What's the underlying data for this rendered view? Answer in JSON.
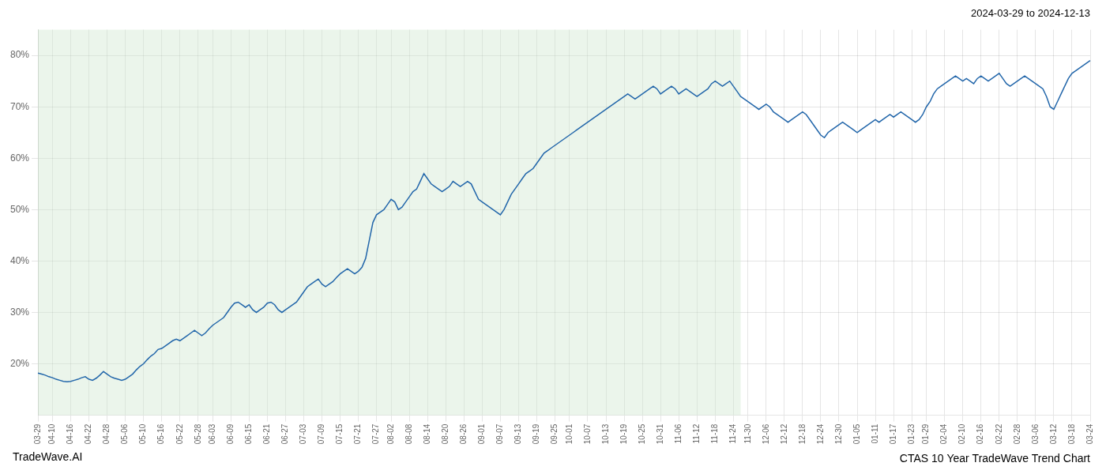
{
  "chart_data": {
    "type": "line",
    "title": "CTAS 10 Year TradeWave Trend Chart",
    "subtitle": "2024-03-29 to 2024-12-13",
    "annotations": [
      "TradeWave.AI"
    ],
    "color": "#2266aa",
    "grid": true,
    "ylim": [
      10,
      85
    ],
    "yticks": [
      {
        "value": 20,
        "label": "20%"
      },
      {
        "value": 30,
        "label": "30%"
      },
      {
        "value": 40,
        "label": "40%"
      },
      {
        "value": 50,
        "label": "50%"
      },
      {
        "value": 60,
        "label": "60%"
      },
      {
        "value": 70,
        "label": "70%"
      },
      {
        "value": 80,
        "label": "80%"
      }
    ],
    "shade": {
      "start": 0,
      "end": 193,
      "color": "#cce5cc"
    },
    "categories": [
      "03-29",
      null,
      null,
      null,
      "04-10",
      null,
      null,
      null,
      null,
      "04-16",
      null,
      null,
      null,
      null,
      "04-22",
      null,
      null,
      null,
      null,
      "04-28",
      null,
      null,
      null,
      null,
      "05-06",
      null,
      null,
      null,
      null,
      "05-10",
      null,
      null,
      null,
      null,
      "05-16",
      null,
      null,
      null,
      null,
      "05-22",
      null,
      null,
      null,
      null,
      "05-28",
      null,
      null,
      null,
      "06-03",
      null,
      null,
      null,
      null,
      "06-09",
      null,
      null,
      null,
      null,
      "06-15",
      null,
      null,
      null,
      null,
      "06-21",
      null,
      null,
      null,
      null,
      "06-27",
      null,
      null,
      null,
      null,
      "07-03",
      null,
      null,
      null,
      null,
      "07-09",
      null,
      null,
      null,
      null,
      "07-15",
      null,
      null,
      null,
      null,
      "07-21",
      null,
      null,
      null,
      null,
      "07-27",
      null,
      null,
      null,
      "08-02",
      null,
      null,
      null,
      null,
      "08-08",
      null,
      null,
      null,
      null,
      "08-14",
      null,
      null,
      null,
      null,
      "08-20",
      null,
      null,
      null,
      null,
      "08-26",
      null,
      null,
      null,
      null,
      "09-01",
      null,
      null,
      null,
      null,
      "09-07",
      null,
      null,
      null,
      null,
      "09-13",
      null,
      null,
      null,
      null,
      "09-19",
      null,
      null,
      null,
      null,
      "09-25",
      null,
      null,
      null,
      "10-01",
      null,
      null,
      null,
      null,
      "10-07",
      null,
      null,
      null,
      null,
      "10-13",
      null,
      null,
      null,
      null,
      "10-19",
      null,
      null,
      null,
      null,
      "10-25",
      null,
      null,
      null,
      null,
      "10-31",
      null,
      null,
      null,
      null,
      "11-06",
      null,
      null,
      null,
      null,
      "11-12",
      null,
      null,
      null,
      null,
      "11-18",
      null,
      null,
      null,
      null,
      "11-24",
      null,
      null,
      null,
      "11-30",
      null,
      null,
      null,
      null,
      "12-06",
      null,
      null,
      null,
      null,
      "12-12",
      null,
      null,
      null,
      null,
      "12-18",
      null,
      null,
      null,
      null,
      "12-24",
      null,
      null,
      null,
      null,
      "12-30",
      null,
      null,
      null,
      null,
      "01-05",
      null,
      null,
      null,
      null,
      "01-11",
      null,
      null,
      null,
      null,
      "01-17",
      null,
      null,
      null,
      null,
      "01-23",
      null,
      null,
      null,
      "01-29",
      null,
      null,
      null,
      null,
      "02-04",
      null,
      null,
      null,
      null,
      "02-10",
      null,
      null,
      null,
      null,
      "02-16",
      null,
      null,
      null,
      null,
      "02-22",
      null,
      null,
      null,
      null,
      "02-28",
      null,
      null,
      null,
      null,
      "03-06",
      null,
      null,
      null,
      null,
      "03-12",
      null,
      null,
      null,
      null,
      "03-18",
      null,
      null,
      null,
      null,
      "03-24"
    ],
    "values": [
      18.2,
      18.0,
      17.8,
      17.5,
      17.3,
      17.0,
      16.8,
      16.6,
      16.5,
      16.6,
      16.8,
      17.0,
      17.3,
      17.5,
      17.0,
      16.8,
      17.2,
      17.8,
      18.5,
      18.0,
      17.5,
      17.2,
      17.0,
      16.8,
      17.0,
      17.5,
      18.0,
      18.8,
      19.5,
      20.0,
      20.8,
      21.5,
      22.0,
      22.8,
      23.0,
      23.5,
      24.0,
      24.5,
      24.8,
      24.5,
      25.0,
      25.5,
      26.0,
      26.5,
      26.0,
      25.5,
      26.0,
      26.8,
      27.5,
      28.0,
      28.5,
      29.0,
      30.0,
      31.0,
      31.8,
      32.0,
      31.5,
      31.0,
      31.5,
      30.5,
      30.0,
      30.5,
      31.0,
      31.8,
      32.0,
      31.5,
      30.5,
      30.0,
      30.5,
      31.0,
      31.5,
      32.0,
      33.0,
      34.0,
      35.0,
      35.5,
      36.0,
      36.5,
      35.5,
      35.0,
      35.5,
      36.0,
      36.8,
      37.5,
      38.0,
      38.5,
      38.0,
      37.5,
      38.0,
      38.8,
      40.5,
      44.0,
      47.5,
      49.0,
      49.5,
      50.0,
      51.0,
      52.0,
      51.5,
      50.0,
      50.5,
      51.5,
      52.5,
      53.5,
      54.0,
      55.5,
      57.0,
      56.0,
      55.0,
      54.5,
      54.0,
      53.5,
      54.0,
      54.5,
      55.5,
      55.0,
      54.5,
      55.0,
      55.5,
      55.0,
      53.5,
      52.0,
      51.5,
      51.0,
      50.5,
      50.0,
      49.5,
      49.0,
      50.0,
      51.5,
      53.0,
      54.0,
      55.0,
      56.0,
      57.0,
      57.5,
      58.0,
      59.0,
      60.0,
      61.0,
      61.5,
      62.0,
      62.5,
      63.0,
      63.5,
      64.0,
      64.5,
      65.0,
      65.5,
      66.0,
      66.5,
      67.0,
      67.5,
      68.0,
      68.5,
      69.0,
      69.5,
      70.0,
      70.5,
      71.0,
      71.5,
      72.0,
      72.5,
      72.0,
      71.5,
      72.0,
      72.5,
      73.0,
      73.5,
      74.0,
      73.5,
      72.5,
      73.0,
      73.5,
      74.0,
      73.5,
      72.5,
      73.0,
      73.5,
      73.0,
      72.5,
      72.0,
      72.5,
      73.0,
      73.5,
      74.5,
      75.0,
      74.5,
      74.0,
      74.5,
      75.0,
      74.0,
      73.0,
      72.0,
      71.5,
      71.0,
      70.5,
      70.0,
      69.5,
      70.0,
      70.5,
      70.0,
      69.0,
      68.5,
      68.0,
      67.5,
      67.0,
      67.5,
      68.0,
      68.5,
      69.0,
      68.5,
      67.5,
      66.5,
      65.5,
      64.5,
      64.0,
      65.0,
      65.5,
      66.0,
      66.5,
      67.0,
      66.5,
      66.0,
      65.5,
      65.0,
      65.5,
      66.0,
      66.5,
      67.0,
      67.5,
      67.0,
      67.5,
      68.0,
      68.5,
      68.0,
      68.5,
      69.0,
      68.5,
      68.0,
      67.5,
      67.0,
      67.5,
      68.5,
      70.0,
      71.0,
      72.5,
      73.5,
      74.0,
      74.5,
      75.0,
      75.5,
      76.0,
      75.5,
      75.0,
      75.5,
      75.0,
      74.5,
      75.5,
      76.0,
      75.5,
      75.0,
      75.5,
      76.0,
      76.5,
      75.5,
      74.5,
      74.0,
      74.5,
      75.0,
      75.5,
      76.0,
      75.5,
      75.0,
      74.5,
      74.0,
      73.5,
      72.0,
      70.0,
      69.5,
      71.0,
      72.5,
      74.0,
      75.5,
      76.5,
      77.0,
      77.5,
      78.0,
      78.5,
      79.0
    ]
  }
}
